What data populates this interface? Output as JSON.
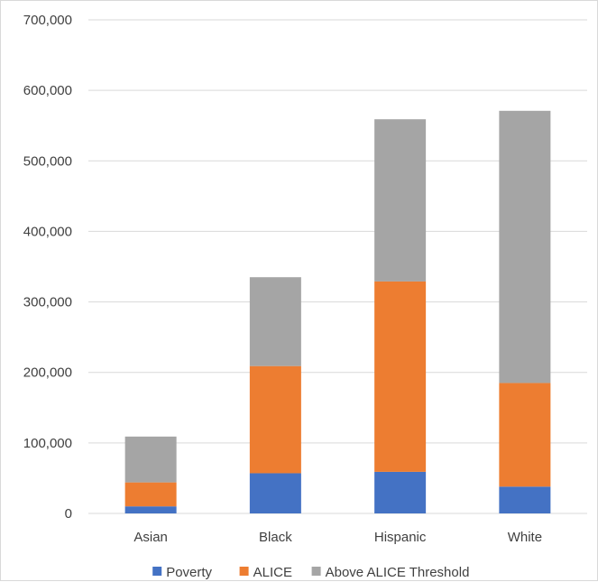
{
  "chart_data": {
    "type": "bar",
    "stacked": true,
    "categories": [
      "Asian",
      "Black",
      "Hispanic",
      "White"
    ],
    "series": [
      {
        "name": "Poverty",
        "color": "#4472c4",
        "values": [
          10000,
          57000,
          59000,
          38000
        ]
      },
      {
        "name": "ALICE",
        "color": "#ed7d31",
        "values": [
          34000,
          152000,
          270000,
          147000
        ]
      },
      {
        "name": "Above ALICE Threshold",
        "color": "#a5a5a5",
        "values": [
          65000,
          126000,
          230000,
          386000
        ]
      }
    ],
    "y_ticks": [
      "0",
      "100,000",
      "200,000",
      "300,000",
      "400,000",
      "500,000",
      "600,000",
      "700,000"
    ],
    "ylim": [
      0,
      700000
    ],
    "grid": true,
    "legend_position": "bottom"
  }
}
